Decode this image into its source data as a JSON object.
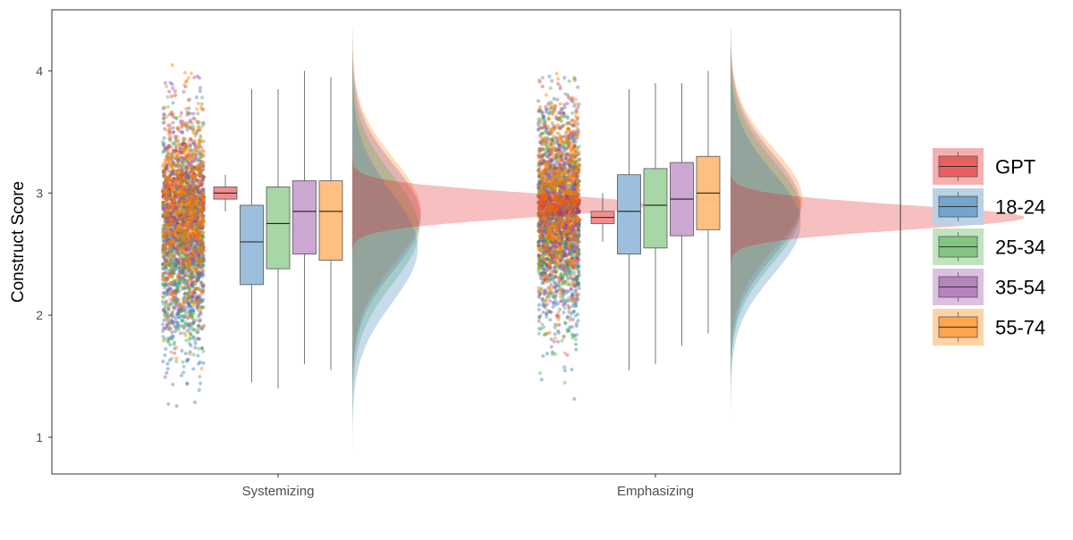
{
  "chart_data": {
    "type": "raincloud",
    "title": "",
    "xlabel": "",
    "ylabel": "Construct Score",
    "ylim": [
      0.7,
      4.5
    ],
    "y_ticks": [
      1,
      2,
      3,
      4
    ],
    "grid": false,
    "legend_position": "right",
    "categories": [
      "Systemizing",
      "Emphasizing"
    ],
    "series": [
      {
        "name": "GPT",
        "color": "#E41A1C",
        "boxes": [
          {
            "category": "Systemizing",
            "min": 2.85,
            "q1": 2.95,
            "median": 3.0,
            "q3": 3.05,
            "max": 3.15
          },
          {
            "category": "Emphasizing",
            "min": 2.6,
            "q1": 2.75,
            "median": 2.8,
            "q3": 2.85,
            "max": 3.0
          }
        ],
        "density": [
          {
            "category": "Systemizing",
            "mean": 2.9,
            "sd": 0.1
          },
          {
            "category": "Emphasizing",
            "mean": 2.8,
            "sd": 0.1
          }
        ]
      },
      {
        "name": "18-24",
        "color": "#377EB8",
        "boxes": [
          {
            "category": "Systemizing",
            "min": 1.45,
            "q1": 2.25,
            "median": 2.6,
            "q3": 2.9,
            "max": 3.85
          },
          {
            "category": "Emphasizing",
            "min": 1.55,
            "q1": 2.5,
            "median": 2.85,
            "q3": 3.15,
            "max": 3.85
          }
        ],
        "density": [
          {
            "category": "Systemizing",
            "mean": 2.55,
            "sd": 0.45
          },
          {
            "category": "Emphasizing",
            "mean": 2.75,
            "sd": 0.42
          }
        ]
      },
      {
        "name": "25-34",
        "color": "#4DAF4A",
        "boxes": [
          {
            "category": "Systemizing",
            "min": 1.4,
            "q1": 2.38,
            "median": 2.75,
            "q3": 3.05,
            "max": 3.85
          },
          {
            "category": "Emphasizing",
            "min": 1.6,
            "q1": 2.55,
            "median": 2.9,
            "q3": 3.2,
            "max": 3.9
          }
        ],
        "density": [
          {
            "category": "Systemizing",
            "mean": 2.7,
            "sd": 0.44
          },
          {
            "category": "Emphasizing",
            "mean": 2.85,
            "sd": 0.42
          }
        ]
      },
      {
        "name": "35-54",
        "color": "#984EA3",
        "boxes": [
          {
            "category": "Systemizing",
            "min": 1.6,
            "q1": 2.5,
            "median": 2.85,
            "q3": 3.1,
            "max": 4.0
          },
          {
            "category": "Emphasizing",
            "min": 1.75,
            "q1": 2.65,
            "median": 2.95,
            "q3": 3.25,
            "max": 3.9
          }
        ],
        "density": [
          {
            "category": "Systemizing",
            "mean": 2.8,
            "sd": 0.43
          },
          {
            "category": "Emphasizing",
            "mean": 2.9,
            "sd": 0.42
          }
        ]
      },
      {
        "name": "55-74",
        "color": "#FF7F00",
        "boxes": [
          {
            "category": "Systemizing",
            "min": 1.55,
            "q1": 2.45,
            "median": 2.85,
            "q3": 3.1,
            "max": 3.95
          },
          {
            "category": "Emphasizing",
            "min": 1.85,
            "q1": 2.7,
            "median": 3.0,
            "q3": 3.3,
            "max": 4.0
          }
        ],
        "density": [
          {
            "category": "Systemizing",
            "mean": 2.85,
            "sd": 0.43
          },
          {
            "category": "Emphasizing",
            "mean": 2.95,
            "sd": 0.41
          }
        ]
      }
    ],
    "jitter_points": {
      "y_range": {
        "Systemizing": [
          1.2,
          4.05
        ],
        "Emphasizing": [
          1.2,
          4.0
        ]
      }
    }
  }
}
